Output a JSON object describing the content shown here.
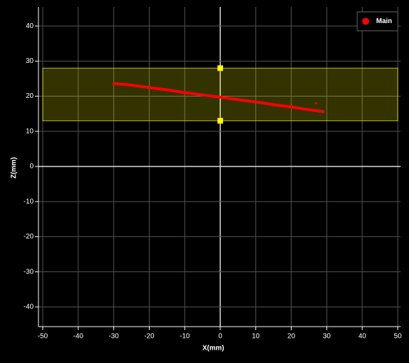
{
  "chart_data": {
    "type": "line",
    "x_label": "X(mm)",
    "y_label": "Z(mm)",
    "xlim": [
      -51.2,
      50.8
    ],
    "ylim": [
      -45.6,
      45.4
    ],
    "xticks": [
      -50,
      -40,
      -30,
      -20,
      -10,
      0,
      10,
      20,
      30,
      40,
      50
    ],
    "yticks": [
      -40,
      -30,
      -20,
      -10,
      0,
      10,
      20,
      30,
      40
    ],
    "grid": true,
    "legend": "top-right",
    "band": [
      13,
      28
    ],
    "band_color": "#ffff00",
    "series": [
      {
        "name": "Main",
        "color": "#ff0000",
        "x": [
          -30,
          -27,
          -24,
          -21,
          -18,
          -15,
          -12,
          -9,
          -6,
          -3,
          0,
          3,
          6,
          9,
          12,
          15,
          18,
          21,
          24,
          27,
          29
        ],
        "values": [
          23.6,
          23.4,
          23.0,
          22.6,
          22.2,
          21.8,
          21.3,
          20.9,
          20.5,
          20.1,
          19.7,
          19.3,
          18.9,
          18.5,
          18.1,
          17.6,
          17.2,
          16.8,
          16.3,
          15.9,
          15.6
        ]
      },
      {
        "color": "#ff0000",
        "x": [
          27
        ],
        "values": [
          18
        ]
      }
    ]
  }
}
